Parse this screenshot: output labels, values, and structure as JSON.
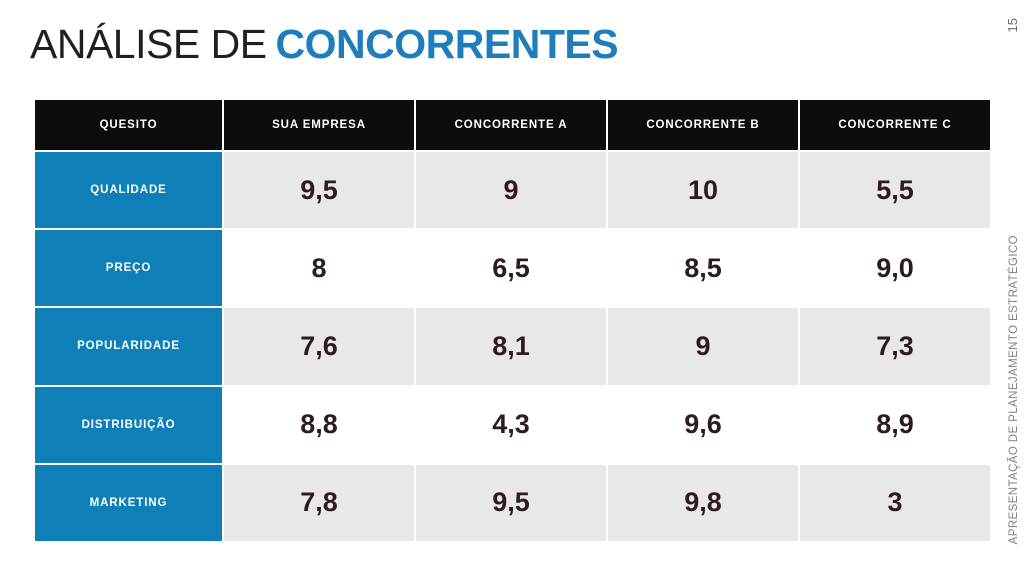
{
  "slide": {
    "title": {
      "regular": "ANÁLISE DE",
      "bold": "CONCORRENTES"
    },
    "page_number": "15",
    "side_label": "APRESENTAÇÃO DE PLANEJAMENTO ESTRATÉGICO"
  },
  "table": {
    "columns": [
      "QUESITO",
      "SUA EMPRESA",
      "CONCORRENTE A",
      "CONCORRENTE B",
      "CONCORRENTE C"
    ],
    "rows": [
      {
        "label": "QUALIDADE",
        "values": [
          "9,5",
          "9",
          "10",
          "5,5"
        ]
      },
      {
        "label": "PREÇO",
        "values": [
          "8",
          "6,5",
          "8,5",
          "9,0"
        ]
      },
      {
        "label": "POPULARIDADE",
        "values": [
          "7,6",
          "8,1",
          "9",
          "7,3"
        ]
      },
      {
        "label": "DISTRIBUIÇÃO",
        "values": [
          "8,8",
          "4,3",
          "9,6",
          "8,9"
        ]
      },
      {
        "label": "MARKETING",
        "values": [
          "7,8",
          "9,5",
          "9,8",
          "3"
        ]
      }
    ]
  },
  "colors": {
    "accent_blue_cells": "#0e80b7",
    "title_blue": "#1f7dbc",
    "header_black": "#0d0d0d",
    "value_text_dark": "#2e1a26",
    "row_gray": "#e8e8e8",
    "side_text_gray": "#808080"
  }
}
